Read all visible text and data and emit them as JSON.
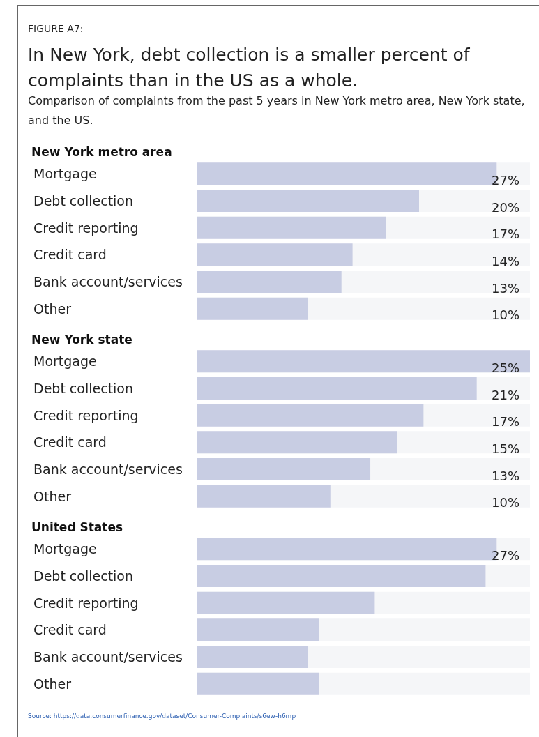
{
  "chart_data": [
    {
      "type": "other",
      "title": "In New York, debt collection is a smaller percent of complaints than in the US as a whole.",
      "subtitle": "Comparison of complaints from the past 5 years in New York metro area, New York state, and the US.",
      "annotations": [
        "FIGURE A7:",
        "Source: https://data.consumerfinance.gov/dataset/Consumer-Complaints/s6ew-h6mp"
      ]
    },
    {
      "type": "bar",
      "orientation": "horizontal",
      "title": "New York metro area",
      "categories": [
        "Mortgage",
        "Debt collection",
        "Credit reporting",
        "Credit card",
        "Bank account/services",
        "Other"
      ],
      "tick_labels": "y",
      "series": [
        {
          "color": "#c8cde3",
          "values": [
            27,
            20,
            17,
            14,
            13,
            10
          ],
          "value_labels": [
            "27%",
            "20%",
            "17%",
            "14%",
            "13%",
            "10%"
          ]
        }
      ]
    },
    {
      "type": "bar",
      "orientation": "horizontal",
      "title": "New York state",
      "categories": [
        "Mortgage",
        "Debt collection",
        "Credit reporting",
        "Credit card",
        "Bank account/services",
        "Other"
      ],
      "tick_labels": "y",
      "series": [
        {
          "color": "#c8cde3",
          "values": [
            25,
            21,
            17,
            15,
            13,
            10
          ],
          "value_labels": [
            "25%",
            "21%",
            "17%",
            "15%",
            "13%",
            "10%"
          ]
        }
      ]
    },
    {
      "type": "bar",
      "orientation": "horizontal",
      "title": "United States",
      "categories": [
        "Mortgage",
        "Debt collection",
        "Credit reporting",
        "Credit card",
        "Bank account/services",
        "Other"
      ],
      "tick_labels": "y",
      "series": [
        {
          "color": "#c8cde3",
          "values": [
            27,
            26,
            16,
            11,
            10,
            11
          ],
          "value_labels": [
            "27%",
            null,
            null,
            null,
            null,
            null
          ]
        }
      ]
    }
  ]
}
